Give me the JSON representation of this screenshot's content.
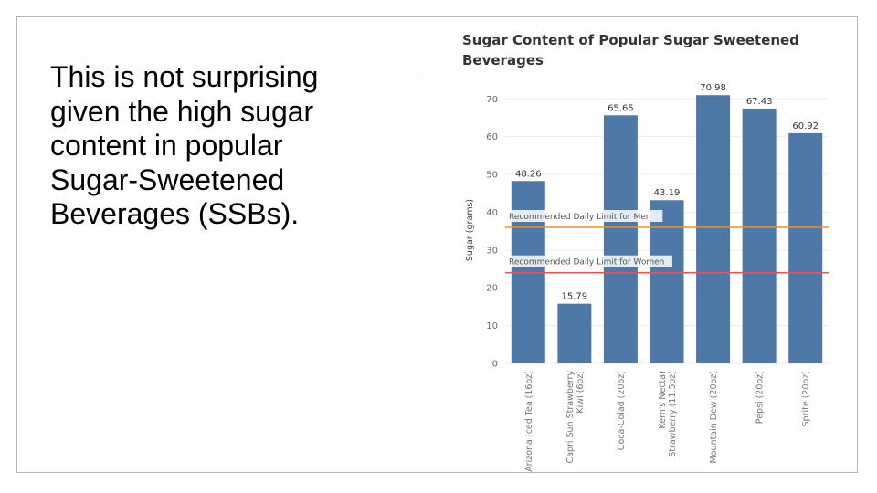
{
  "slide": {
    "text": "This is not surprising given the high sugar content in popular Sugar-Sweetened Beverages (SSBs)."
  },
  "chart_data": {
    "type": "bar",
    "title": "Sugar Content of Popular Sugar Sweetened Beverages",
    "xlabel": "",
    "ylabel": "Sugar (grams)",
    "ylim": [
      0,
      72
    ],
    "yticks": [
      0,
      10,
      20,
      30,
      40,
      50,
      60,
      70
    ],
    "categories": [
      [
        "Arizona Iced Tea (16oz)"
      ],
      [
        "Capri Sun Strawberry",
        "Kiwi (6oz)"
      ],
      [
        "Coca-Colad (20oz)"
      ],
      [
        "Kern's Nectar",
        "Strawberry (11.5oz)"
      ],
      [
        "Mountain Dew (20oz)"
      ],
      [
        "Pepsi (20oz)"
      ],
      [
        "Sprite (20oz)"
      ]
    ],
    "values": [
      48.26,
      15.79,
      65.65,
      43.19,
      70.98,
      67.43,
      60.92
    ],
    "data_labels": [
      "48.26",
      "15.79",
      "65.65",
      "43.19",
      "70.98",
      "67.43",
      "60.92"
    ],
    "reference_lines": [
      {
        "label": "Recommended Daily Limit for Men",
        "value": 36,
        "color": "#f28e2b"
      },
      {
        "label": "Recommended Daily Limit for Women",
        "value": 24,
        "color": "#e15759"
      }
    ],
    "bar_color": "#4e79a7",
    "grid": true
  }
}
